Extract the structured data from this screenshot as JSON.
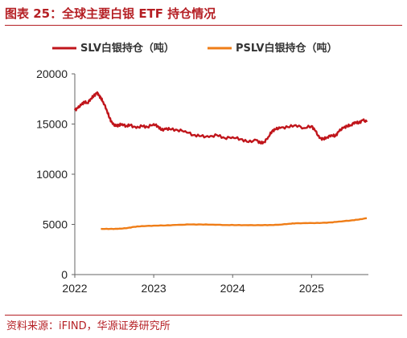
{
  "header": {
    "title": "图表 25：全球主要白银 ETF 持仓情况"
  },
  "footer": {
    "source": "资料来源：iFIND，华源证券研究所"
  },
  "colors": {
    "brand": "#b51f24",
    "slv": "#c0151b",
    "pslv": "#ef7d17"
  },
  "chart_data": {
    "type": "line",
    "xlim": [
      2022.0,
      2025.72
    ],
    "ylim": [
      0,
      20000
    ],
    "xticks": [
      2022,
      2023,
      2024,
      2025
    ],
    "xtick_labels": [
      "2022",
      "2023",
      "2024",
      "2025"
    ],
    "yticks": [
      0,
      5000,
      10000,
      15000,
      20000
    ],
    "ytick_labels": [
      "0",
      "5000",
      "10000",
      "15000",
      "20000"
    ],
    "legend_position": "top",
    "grid": false,
    "series": [
      {
        "name": "SLV白银持仓（吨）",
        "color": "#c0151b",
        "x": [
          2022.0,
          2022.04,
          2022.08,
          2022.12,
          2022.16,
          2022.2,
          2022.24,
          2022.28,
          2022.3,
          2022.33,
          2022.36,
          2022.4,
          2022.44,
          2022.48,
          2022.52,
          2022.56,
          2022.6,
          2022.65,
          2022.7,
          2022.78,
          2022.85,
          2022.92,
          2023.0,
          2023.05,
          2023.1,
          2023.15,
          2023.2,
          2023.3,
          2023.4,
          2023.5,
          2023.6,
          2023.7,
          2023.8,
          2023.9,
          2024.0,
          2024.1,
          2024.2,
          2024.3,
          2024.35,
          2024.4,
          2024.45,
          2024.5,
          2024.55,
          2024.6,
          2024.7,
          2024.8,
          2024.9,
          2025.0,
          2025.05,
          2025.1,
          2025.15,
          2025.2,
          2025.25,
          2025.3,
          2025.35,
          2025.4,
          2025.45,
          2025.5,
          2025.55,
          2025.6,
          2025.65,
          2025.7
        ],
        "values": [
          16400,
          16600,
          16900,
          17200,
          17100,
          17500,
          17800,
          18100,
          17900,
          17600,
          17200,
          16500,
          15600,
          15000,
          14800,
          14900,
          15000,
          14800,
          14900,
          14600,
          14800,
          14700,
          15000,
          14800,
          14400,
          14500,
          14500,
          14400,
          14300,
          13900,
          13800,
          13700,
          13900,
          13600,
          13700,
          13500,
          13200,
          13400,
          13100,
          13200,
          13700,
          14300,
          14500,
          14600,
          14700,
          14900,
          14600,
          14800,
          14300,
          13600,
          13500,
          13700,
          13900,
          13800,
          14300,
          14600,
          14800,
          14900,
          15200,
          15100,
          15400,
          15200
        ]
      },
      {
        "name": "PSLV白银持仓（吨）",
        "color": "#ef7d17",
        "x": [
          2022.33,
          2022.45,
          2022.55,
          2022.65,
          2022.75,
          2022.85,
          2023.0,
          2023.15,
          2023.3,
          2023.45,
          2023.6,
          2023.75,
          2023.9,
          2024.05,
          2024.2,
          2024.35,
          2024.5,
          2024.6,
          2024.7,
          2024.8,
          2024.95,
          2025.1,
          2025.25,
          2025.35,
          2025.5,
          2025.6,
          2025.7
        ],
        "values": [
          4550,
          4550,
          4560,
          4620,
          4750,
          4830,
          4870,
          4900,
          4950,
          4990,
          4990,
          4980,
          4940,
          4930,
          4920,
          4920,
          4940,
          4980,
          5050,
          5110,
          5130,
          5140,
          5200,
          5290,
          5390,
          5490,
          5620
        ]
      }
    ]
  }
}
